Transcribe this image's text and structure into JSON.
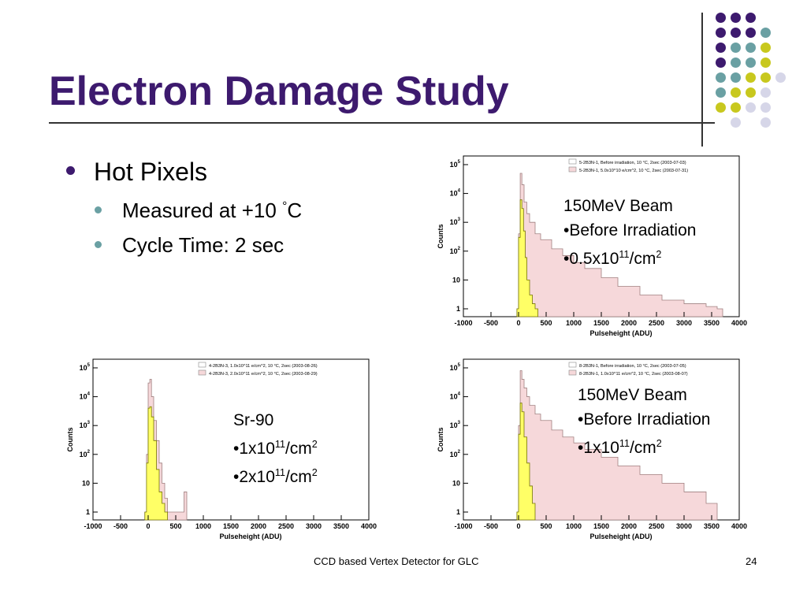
{
  "slide": {
    "title": "Electron Damage Study",
    "bullet": "Hot Pixels",
    "sub_bullet_1_text": "Measured at +10 ",
    "sub_bullet_1_deg": "°",
    "sub_bullet_1_unit": "C",
    "sub_bullet_2": "Cycle Time: 2 sec",
    "footer_center": "CCD based Vertex Detector for GLC",
    "page_number": "24"
  },
  "colors": {
    "title": "#3d1a6e",
    "sub_bullet": "#6aa0a3",
    "after_irradiation_fill": "#f6d8da",
    "before_irradiation_fill": "#ffff66",
    "dot_purple": "#3d1a6e",
    "dot_teal": "#6aa0a3",
    "dot_yellow": "#c8c81e",
    "dot_lavender": "#d6d6e8"
  },
  "annotations": {
    "top_right": {
      "line1": "150MeV Beam",
      "line2": "•Before Irradiation",
      "line3_prefix": "•0.5x10",
      "line3_exp": "11",
      "line3_unit": "/cm",
      "line3_unit_exp": "2"
    },
    "bottom_left": {
      "line1": "Sr-90",
      "line2_prefix": "•1x10",
      "line2_exp": "11",
      "line2_unit": "/cm",
      "line2_unit_exp": "2",
      "line3_prefix": "•2x10",
      "line3_exp": "11",
      "line3_unit": "/cm",
      "line3_unit_exp": "2"
    },
    "bottom_right": {
      "line1": "150MeV Beam",
      "line2": "•Before Irradiation",
      "line3_prefix": "•1x10",
      "line3_exp": "11",
      "line3_unit": "/cm",
      "line3_unit_exp": "2"
    }
  },
  "chart_data": [
    {
      "type": "area",
      "id": "plot-top-right",
      "xlabel": "Pulseheight (ADU)",
      "ylabel": "Counts",
      "xlim": [
        -1000,
        4000
      ],
      "y_scale": "log",
      "y_ticks": [
        "1",
        "10",
        "10^2",
        "10^3",
        "10^4",
        "10^5"
      ],
      "x_ticks": [
        "-1000",
        "-500",
        "0",
        "500",
        "1000",
        "1500",
        "2000",
        "2500",
        "3000",
        "3500",
        "4000"
      ],
      "legend": [
        "5-2B3N-1, Before irradiation, 10 °C, 2sec (2003-07-03)",
        "5-2B3N-1, 5.0x10^10 e/cm^2, 10 °C, 2sec (2003-07-31)"
      ],
      "legend_position": "top-right",
      "series": [
        {
          "name": "5-2B3N-1, Before irradiation, 10 °C, 2sec (2003-07-03)",
          "x": [
            -30,
            0,
            30,
            60,
            90,
            120,
            150,
            200,
            250,
            300,
            350
          ],
          "y": [
            1,
            300,
            6000,
            3000,
            500,
            60,
            10,
            3,
            1.5,
            1,
            1
          ]
        },
        {
          "name": "5-2B3N-1, 5.0x10^10 e/cm^2, 10 °C, 2sec (2003-07-31)",
          "x": [
            -30,
            0,
            30,
            60,
            100,
            150,
            200,
            300,
            400,
            600,
            800,
            1000,
            1200,
            1500,
            1800,
            2200,
            2600,
            3000,
            3400,
            3600,
            3700
          ],
          "y": [
            1,
            400,
            50000,
            20000,
            5000,
            2000,
            1000,
            400,
            250,
            120,
            70,
            40,
            25,
            12,
            6,
            3,
            2,
            1.5,
            1.2,
            1,
            1
          ]
        }
      ]
    },
    {
      "type": "area",
      "id": "plot-bottom-left",
      "xlabel": "Pulseheight (ADU)",
      "ylabel": "Counts",
      "xlim": [
        -1000,
        4000
      ],
      "y_scale": "log",
      "y_ticks": [
        "1",
        "10",
        "10^2",
        "10^3",
        "10^4",
        "10^5"
      ],
      "x_ticks": [
        "-1000",
        "-500",
        "0",
        "500",
        "1000",
        "1500",
        "2000",
        "2500",
        "3000",
        "3500",
        "4000"
      ],
      "legend": [
        "4-2B3N-3, 1.0x10^11 e/cm^2, 10 °C, 2sec (2003-08-26)",
        "4-2B3N-3, 2.0x10^11 e/cm^2, 10 °C, 2sec (2003-08-29)"
      ],
      "legend_position": "top-right",
      "series": [
        {
          "name": "4-2B3N-3, 1.0x10^11 e/cm^2, 10 °C, 2sec (2003-08-26)",
          "x": [
            -60,
            -30,
            0,
            30,
            60,
            100,
            150,
            200,
            250,
            300,
            350
          ],
          "y": [
            1,
            50,
            4000,
            4500,
            2000,
            300,
            30,
            5,
            2,
            1,
            1
          ]
        },
        {
          "name": "4-2B3N-3, 2.0x10^11 e/cm^2, 10 °C, 2sec (2003-08-29)",
          "x": [
            -60,
            -30,
            0,
            30,
            60,
            100,
            150,
            200,
            250,
            300,
            350,
            600,
            650,
            700
          ],
          "y": [
            1,
            100,
            30000,
            40000,
            10000,
            1500,
            300,
            50,
            10,
            3,
            1,
            1,
            5,
            1
          ]
        }
      ]
    },
    {
      "type": "area",
      "id": "plot-bottom-right",
      "xlabel": "Pulseheight (ADU)",
      "ylabel": "Counts",
      "xlim": [
        -1000,
        4000
      ],
      "y_scale": "log",
      "y_ticks": [
        "1",
        "10",
        "10^2",
        "10^3",
        "10^4",
        "10^5"
      ],
      "x_ticks": [
        "-1000",
        "-500",
        "0",
        "500",
        "1000",
        "1500",
        "2000",
        "2500",
        "3000",
        "3500",
        "4000"
      ],
      "legend": [
        "8-2B3N-1, Before irradiation, 10 °C, 2sec (2003-07-05)",
        "8-2B3N-1, 1.0x10^11 e/cm^2, 10 °C, 2sec (2003-08-07)"
      ],
      "legend_position": "top-right",
      "series": [
        {
          "name": "8-2B3N-1, Before irradiation, 10 °C, 2sec (2003-07-05)",
          "x": [
            -30,
            0,
            30,
            60,
            100,
            150,
            200,
            250,
            300
          ],
          "y": [
            1,
            500,
            6000,
            3000,
            400,
            50,
            8,
            2,
            1
          ]
        },
        {
          "name": "8-2B3N-1, 1.0x10^11 e/cm^2, 10 °C, 2sec (2003-08-07)",
          "x": [
            -30,
            0,
            30,
            60,
            100,
            150,
            200,
            300,
            400,
            600,
            800,
            1000,
            1200,
            1500,
            1800,
            2200,
            2600,
            3000,
            3400,
            3600
          ],
          "y": [
            1,
            1000,
            80000,
            40000,
            20000,
            10000,
            5000,
            2500,
            1500,
            700,
            400,
            250,
            150,
            80,
            40,
            20,
            10,
            5,
            2,
            1
          ]
        }
      ]
    }
  ]
}
